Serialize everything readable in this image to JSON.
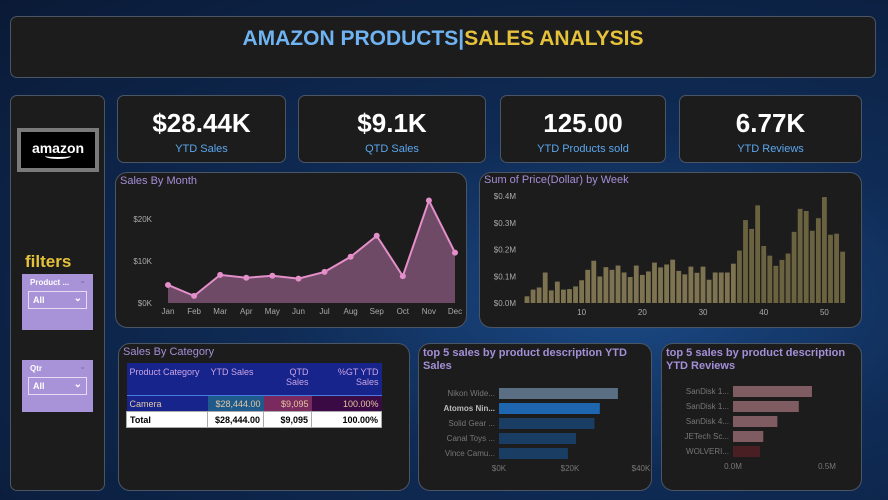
{
  "header": {
    "title_part1": "AMAZON PRODUCTS",
    "separator": "|",
    "title_part2": "SALES ANALYSIS"
  },
  "logo": {
    "text": "amazon"
  },
  "filters": {
    "label": "filters",
    "slicers": [
      {
        "label": "Product ...",
        "value": "All"
      },
      {
        "label": "Qtr",
        "value": "All"
      }
    ]
  },
  "kpis": [
    {
      "value": "$28.44K",
      "label": "YTD Sales"
    },
    {
      "value": "$9.1K",
      "label": "QTD Sales"
    },
    {
      "value": "125.00",
      "label": "YTD Products sold"
    },
    {
      "value": "6.77K",
      "label": "YTD Reviews"
    }
  ],
  "colors": {
    "title_blue": "#6fb3f2",
    "title_gold": "#e5c23a",
    "line": "#e48fc9",
    "area": "#6e4a66",
    "week_bar": "#6b6340",
    "slicer": "#a892d8"
  },
  "table": {
    "title": "Sales By Category",
    "headers": [
      "Product Category",
      "YTD Sales",
      "QTD Sales",
      "%GT YTD Sales"
    ],
    "rows": [
      [
        "Camera",
        "$28,444.00",
        "$9,095",
        "100.00%"
      ]
    ],
    "total": [
      "Total",
      "$28,444.00",
      "$9,095",
      "100.00%"
    ]
  },
  "chart_data": [
    {
      "type": "area",
      "title": "Sales By Month",
      "categories": [
        "Jan",
        "Feb",
        "Mar",
        "Apr",
        "May",
        "Jun",
        "Jul",
        "Aug",
        "Sep",
        "Oct",
        "Nov",
        "Dec"
      ],
      "values": [
        4300,
        1700,
        6700,
        6000,
        6500,
        5800,
        7400,
        11000,
        16000,
        6400,
        24400,
        12000
      ],
      "yticks": [
        "$0K",
        "$10K",
        "$20K"
      ],
      "ylim": [
        0,
        25000
      ],
      "grid": false
    },
    {
      "type": "bar",
      "title": "Sum of Price(Dollar) by Week",
      "x": [
        1,
        2,
        3,
        4,
        5,
        6,
        7,
        8,
        9,
        10,
        11,
        12,
        13,
        14,
        15,
        16,
        17,
        18,
        19,
        20,
        21,
        22,
        23,
        24,
        25,
        26,
        27,
        28,
        29,
        30,
        31,
        32,
        33,
        34,
        35,
        36,
        37,
        38,
        39,
        40,
        41,
        42,
        43,
        44,
        45,
        46,
        47,
        48,
        49,
        50,
        51,
        52,
        53
      ],
      "values": [
        0.025,
        0.05,
        0.058,
        0.114,
        0.047,
        0.08,
        0.05,
        0.052,
        0.062,
        0.085,
        0.124,
        0.158,
        0.099,
        0.134,
        0.124,
        0.14,
        0.114,
        0.097,
        0.14,
        0.105,
        0.118,
        0.151,
        0.133,
        0.144,
        0.162,
        0.12,
        0.107,
        0.136,
        0.113,
        0.136,
        0.087,
        0.114,
        0.114,
        0.114,
        0.147,
        0.196,
        0.31,
        0.277,
        0.365,
        0.213,
        0.177,
        0.139,
        0.161,
        0.185,
        0.266,
        0.352,
        0.344,
        0.27,
        0.317,
        0.396,
        0.255,
        0.259,
        0.192
      ],
      "unit": "$M",
      "yticks": [
        "$0.0M",
        "$0.1M",
        "$0.2M",
        "$0.3M",
        "$0.4M"
      ],
      "xticks": [
        "10",
        "20",
        "30",
        "40",
        "50"
      ],
      "ylim": [
        0,
        0.4
      ],
      "grid": false
    },
    {
      "type": "bar",
      "orientation": "horizontal",
      "title": "top 5 sales by product description YTD Sales",
      "categories": [
        "Nikon Wide...",
        "Atomos Nin...",
        "Solid Gear ...",
        "Canal Toys ...",
        "Vince Camu..."
      ],
      "values": [
        33500,
        28400,
        26900,
        21700,
        19400
      ],
      "xticks": [
        "$0K",
        "$20K",
        "$40K"
      ],
      "xlim": [
        0,
        40000
      ],
      "highlighted": "Atomos Nin..."
    },
    {
      "type": "bar",
      "orientation": "horizontal",
      "title": "top 5 sales by product description YTD Reviews",
      "categories": [
        "SanDisk 1...",
        "SanDisk 1...",
        "SanDisk 4...",
        "JETech Sc...",
        "WOLVERI..."
      ],
      "values": [
        0.42,
        0.35,
        0.236,
        0.161,
        0.144
      ],
      "unit": "M",
      "xticks": [
        "0.0M",
        "0.5M"
      ],
      "xlim": [
        0,
        0.5
      ]
    }
  ]
}
